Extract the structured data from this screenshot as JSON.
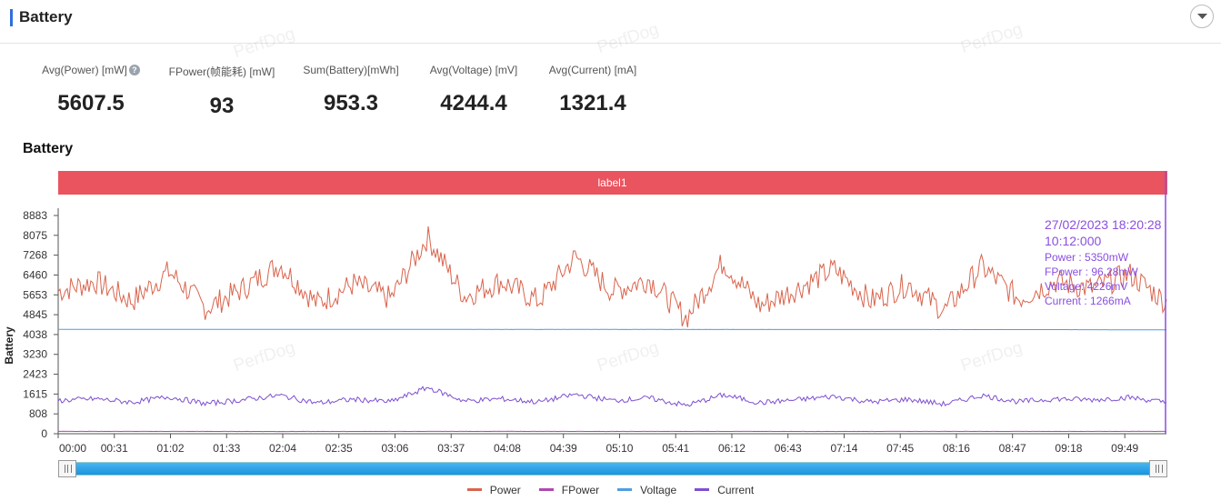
{
  "header": {
    "title": "Battery"
  },
  "watermark": "PerfDog",
  "stats": [
    {
      "label": "Avg(Power) [mW]",
      "value": "5607.5",
      "help": "?"
    },
    {
      "label": "FPower(帧能耗) [mW]",
      "value": "93"
    },
    {
      "label": "Sum(Battery)[mWh]",
      "value": "953.3"
    },
    {
      "label": "Avg(Voltage) [mV]",
      "value": "4244.4"
    },
    {
      "label": "Avg(Current) [mA]",
      "value": "1321.4"
    }
  ],
  "section_title": "Battery",
  "chart_data": {
    "type": "line",
    "title": "",
    "ylabel": "Battery",
    "xlabel": "",
    "ylim": [
      0,
      8883
    ],
    "y_ticks": [
      "8883",
      "8075",
      "7268",
      "6460",
      "5653",
      "4845",
      "4038",
      "3230",
      "2423",
      "1615",
      "808",
      "0"
    ],
    "x_ticks": [
      "00:00",
      "00:31",
      "01:02",
      "01:33",
      "02:04",
      "02:35",
      "03:06",
      "03:37",
      "04:08",
      "04:39",
      "05:10",
      "05:41",
      "06:12",
      "06:43",
      "07:14",
      "07:45",
      "08:16",
      "08:47",
      "09:18",
      "09:49"
    ],
    "label_band": "label1",
    "x_range_seconds": [
      0,
      612
    ],
    "series": [
      {
        "name": "Power",
        "color": "#d9644c",
        "mean": 5600,
        "spread": 500,
        "values_sample": [
          5800,
          6200,
          5400,
          6600,
          5100,
          5900,
          6900,
          5300,
          6100,
          5500,
          8000,
          5600,
          6200,
          5400,
          7200,
          5800,
          6300,
          4700,
          7000,
          5200,
          5900,
          6700,
          5400,
          6100,
          5000,
          6800,
          5500,
          6200,
          5900,
          6500,
          5350
        ]
      },
      {
        "name": "FPower",
        "color": "#b048b0",
        "values_sample": [
          96,
          95,
          92,
          94,
          96,
          93,
          95,
          92,
          96,
          94,
          96
        ]
      },
      {
        "name": "Voltage",
        "color": "#4e9de3",
        "values_sample": [
          4250,
          4248,
          4246,
          4245,
          4244,
          4244,
          4243,
          4242,
          4240,
          4238,
          4226
        ]
      },
      {
        "name": "Current",
        "color": "#7e4fd0",
        "mean": 1320,
        "spread": 120,
        "values_sample": [
          1350,
          1420,
          1280,
          1500,
          1220,
          1380,
          1560,
          1250,
          1400,
          1300,
          1880,
          1330,
          1420,
          1290,
          1600,
          1350,
          1450,
          1150,
          1580,
          1260,
          1380,
          1520,
          1290,
          1400,
          1200,
          1560,
          1300,
          1420,
          1380,
          1480,
          1266
        ]
      }
    ],
    "tooltip": {
      "date": "27/02/2023 18:20:28",
      "time": "10:12:000",
      "lines": [
        "Power   : 5350mW",
        "FPower : 96.28mW",
        "Voltage: 4226mV",
        "Current : 1266mA"
      ]
    },
    "slider_range": [
      0,
      1
    ],
    "legend_position": "bottom-center"
  }
}
